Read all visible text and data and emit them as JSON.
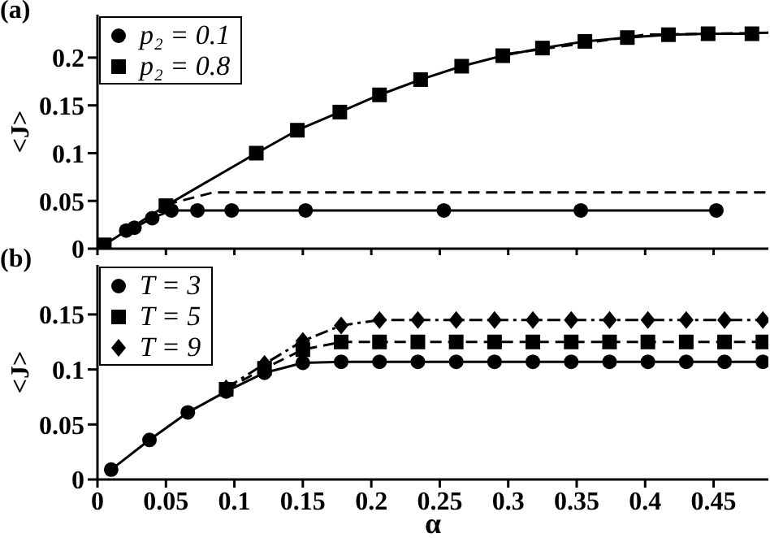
{
  "chart_data": [
    {
      "type": "line",
      "annotations": [
        "(a)"
      ],
      "ylabel": "<J>",
      "xlim": [
        0,
        0.49
      ],
      "ylim": [
        0,
        0.245
      ],
      "xticks": [
        0,
        0.05,
        0.1,
        0.15,
        0.2,
        0.25,
        0.3,
        0.35,
        0.4,
        0.45
      ],
      "yticks": [
        0,
        0.05,
        0.1,
        0.15,
        0.2
      ],
      "tick_labels": "y",
      "legend": "top left",
      "grid": false,
      "series": [
        {
          "name": "p₂ = 0.1",
          "color": "#000000",
          "marker": "circle",
          "line_style": "solid",
          "x": [
            0.021,
            0.027,
            0.04,
            0.054,
            0.073,
            0.098,
            0.152,
            0.253,
            0.353,
            0.452
          ],
          "values": [
            0.019,
            0.022,
            0.032,
            0.04,
            0.04,
            0.04,
            0.04,
            0.04,
            0.04,
            0.04
          ]
        },
        {
          "name": "p₂ = 0.8",
          "color": "#000000",
          "marker": "square",
          "line_style": "solid",
          "x": [
            0.005,
            0.05,
            0.116,
            0.146,
            0.177,
            0.206,
            0.236,
            0.266,
            0.296,
            0.325,
            0.356,
            0.387,
            0.417,
            0.446,
            0.478
          ],
          "values": [
            0.004,
            0.045,
            0.1,
            0.124,
            0.143,
            0.161,
            0.177,
            0.191,
            0.202,
            0.21,
            0.217,
            0.221,
            0.224,
            0.225,
            0.225
          ]
        },
        {
          "color": "#000000",
          "marker": "none",
          "line_style": "dashed",
          "x": [
            0.05,
            0.085,
            0.49
          ],
          "values": [
            0.046,
            0.059,
            0.059
          ]
        },
        {
          "color": "#000000",
          "marker": "none",
          "line_style": "dashed",
          "x": [
            0.3,
            0.4,
            0.49
          ],
          "values": [
            0.204,
            0.224,
            0.226
          ]
        }
      ]
    },
    {
      "type": "line",
      "annotations": [
        "(b)"
      ],
      "xlabel": "α",
      "ylabel": "<J>",
      "xlim": [
        0,
        0.49
      ],
      "ylim": [
        0,
        0.195
      ],
      "xticks": [
        0,
        0.05,
        0.1,
        0.15,
        0.2,
        0.25,
        0.3,
        0.35,
        0.4,
        0.45
      ],
      "yticks": [
        0,
        0.05,
        0.1,
        0.15
      ],
      "legend": "top left",
      "grid": false,
      "x": [
        0.01,
        0.038,
        0.066,
        0.094,
        0.122,
        0.15,
        0.178,
        0.206,
        0.234,
        0.262,
        0.29,
        0.318,
        0.346,
        0.374,
        0.402,
        0.43,
        0.458,
        0.486
      ],
      "series": [
        {
          "name": "T = 3",
          "color": "#000000",
          "marker": "circle",
          "line_style": "solid",
          "values": [
            0.009,
            0.036,
            0.061,
            0.08,
            0.097,
            0.106,
            0.107,
            0.107,
            0.107,
            0.107,
            0.107,
            0.107,
            0.107,
            0.107,
            0.107,
            0.107,
            0.107,
            0.107
          ]
        },
        {
          "name": "T = 5",
          "color": "#000000",
          "marker": "square",
          "line_style": "dashed",
          "values": [
            null,
            null,
            null,
            0.082,
            0.101,
            0.118,
            0.125,
            0.125,
            0.125,
            0.125,
            0.125,
            0.125,
            0.125,
            0.125,
            0.125,
            0.125,
            0.125,
            0.125
          ]
        },
        {
          "name": "T = 9",
          "color": "#000000",
          "marker": "diamond",
          "line_style": "dashdot",
          "values": [
            null,
            null,
            null,
            0.083,
            0.105,
            0.126,
            0.14,
            0.145,
            0.145,
            0.145,
            0.145,
            0.145,
            0.145,
            0.145,
            0.145,
            0.145,
            0.145,
            0.145
          ]
        }
      ]
    }
  ]
}
